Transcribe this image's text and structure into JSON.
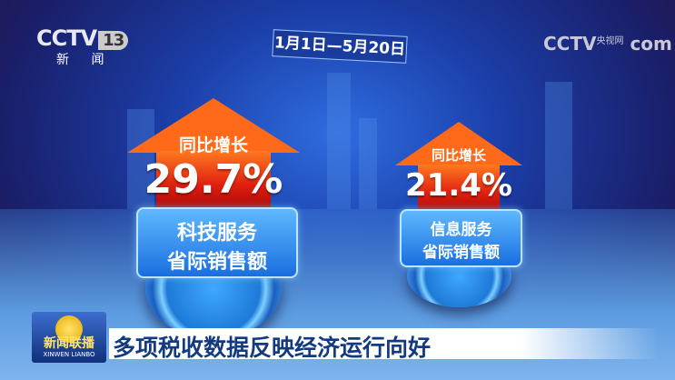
{
  "channel": {
    "logo": "CCTV",
    "number": "13",
    "name": "新 闻"
  },
  "date_range": "1月1日—5月20日",
  "watermark": {
    "logo": "CCTV",
    "suffix": "com",
    "site": "央视网"
  },
  "stats": [
    {
      "caption": "同比增长",
      "value": "29.7%",
      "label_line1": "科技服务",
      "label_line2": "省际销售额"
    },
    {
      "caption": "同比增长",
      "value": "21.4%",
      "label_line1": "信息服务",
      "label_line2": "省际销售额"
    }
  ],
  "program": {
    "name": "新闻联播",
    "pinyin": "XINWEN LIANBO"
  },
  "headline": "多项税收数据反映经济运行向好",
  "colors": {
    "arrow": "#e02010",
    "label": "#1a6fe0",
    "headline_text": "#123a80"
  }
}
